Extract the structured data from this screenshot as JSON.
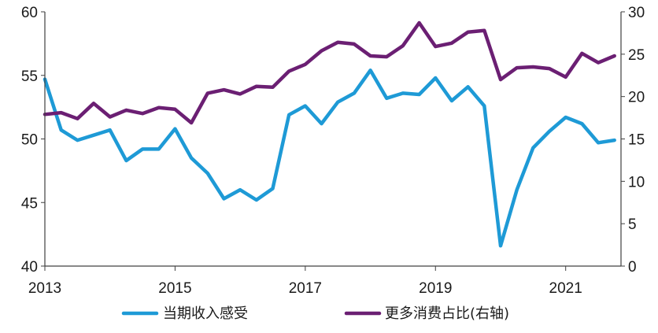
{
  "chart_data": {
    "type": "line",
    "x_ticks": [
      "2013",
      "2015",
      "2017",
      "2019",
      "2021"
    ],
    "y_left": {
      "ylim": [
        40,
        60
      ],
      "ticks": [
        "40",
        "45",
        "50",
        "55",
        "60"
      ]
    },
    "y_right": {
      "ylim": [
        0,
        30
      ],
      "ticks": [
        "0",
        "5",
        "10",
        "15",
        "20",
        "25",
        "30"
      ]
    },
    "legend_position": "bottom",
    "series": [
      {
        "name": "当期收入感受",
        "axis": "left",
        "color": "#1e9ad6",
        "x": [
          2013.0,
          2013.25,
          2013.5,
          2013.75,
          2014.0,
          2014.25,
          2014.5,
          2014.75,
          2015.0,
          2015.25,
          2015.5,
          2015.75,
          2016.0,
          2016.25,
          2016.5,
          2016.75,
          2017.0,
          2017.25,
          2017.5,
          2017.75,
          2018.0,
          2018.25,
          2018.5,
          2018.75,
          2019.0,
          2019.25,
          2019.5,
          2019.75,
          2020.0,
          2020.25,
          2020.5,
          2020.75,
          2021.0,
          2021.25,
          2021.5,
          2021.75
        ],
        "values": [
          54.7,
          50.7,
          49.9,
          50.3,
          50.7,
          48.3,
          49.2,
          49.2,
          50.8,
          48.5,
          47.3,
          45.3,
          46.0,
          45.2,
          46.1,
          51.9,
          52.6,
          51.2,
          52.9,
          53.6,
          55.4,
          53.2,
          53.6,
          53.5,
          54.8,
          53.0,
          54.1,
          52.6,
          41.6,
          46.0,
          49.3,
          50.6,
          51.7,
          51.2,
          49.7,
          49.9
        ]
      },
      {
        "name": "更多消费占比(右轴)",
        "axis": "right",
        "color": "#6b1f73",
        "x": [
          2013.0,
          2013.25,
          2013.5,
          2013.75,
          2014.0,
          2014.25,
          2014.5,
          2014.75,
          2015.0,
          2015.25,
          2015.5,
          2015.75,
          2016.0,
          2016.25,
          2016.5,
          2016.75,
          2017.0,
          2017.25,
          2017.5,
          2017.75,
          2018.0,
          2018.25,
          2018.5,
          2018.75,
          2019.0,
          2019.25,
          2019.5,
          2019.75,
          2020.0,
          2020.25,
          2020.5,
          2020.75,
          2021.0,
          2021.25,
          2021.5,
          2021.75
        ],
        "values": [
          17.9,
          18.1,
          17.4,
          19.2,
          17.6,
          18.4,
          18.0,
          18.7,
          18.5,
          16.9,
          20.4,
          20.8,
          20.3,
          21.2,
          21.1,
          23.0,
          23.8,
          25.4,
          26.4,
          26.2,
          24.8,
          24.7,
          26.0,
          28.7,
          25.9,
          26.3,
          27.6,
          27.8,
          22.0,
          23.4,
          23.5,
          23.3,
          22.3,
          25.1,
          24.0,
          24.8
        ]
      }
    ]
  }
}
